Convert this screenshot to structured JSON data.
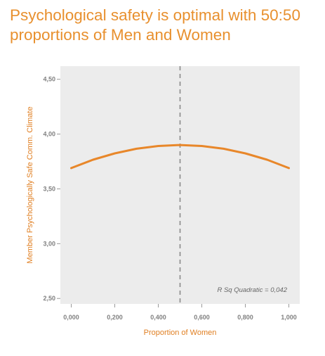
{
  "title": "Psychological safety is optimal with 50:50 proportions of Men and Women",
  "colors": {
    "title": "#e8902e",
    "curve": "#e8872a",
    "plot_bg": "#ececec",
    "axis_label": "#e07f22",
    "ref_line": "#8a8a8a"
  },
  "chart_data": {
    "type": "line",
    "title": "Psychological safety is optimal with 50:50 proportions of Men and Women",
    "xlabel": "Proportion of Women",
    "ylabel": "Member Psychologically Safe Comm. Climate",
    "xlim": [
      -0.05,
      1.05
    ],
    "ylim": [
      2.45,
      4.62
    ],
    "xticks": [
      0,
      0.2,
      0.4,
      0.6,
      0.8,
      1.0
    ],
    "xtick_labels": [
      "0,000",
      "0,200",
      "0,400",
      "0,600",
      "0,800",
      "1,000"
    ],
    "yticks": [
      2.5,
      3.0,
      3.5,
      4.0,
      4.5
    ],
    "ytick_labels": [
      "2,50",
      "3,00",
      "3,50",
      "4,00",
      "4,50"
    ],
    "series": [
      {
        "fit": "quadratic",
        "x": [
          0,
          0.1,
          0.2,
          0.3,
          0.4,
          0.5,
          0.6,
          0.7,
          0.8,
          0.9,
          1.0
        ],
        "y": [
          3.69,
          3.766,
          3.824,
          3.866,
          3.891,
          3.9,
          3.891,
          3.866,
          3.824,
          3.766,
          3.69
        ]
      }
    ],
    "reference_line": {
      "orientation": "vertical",
      "x": 0.5,
      "style": "dashed"
    },
    "annotation": "R Sq Quadratic = 0,042",
    "grid": false,
    "legend": "none"
  }
}
